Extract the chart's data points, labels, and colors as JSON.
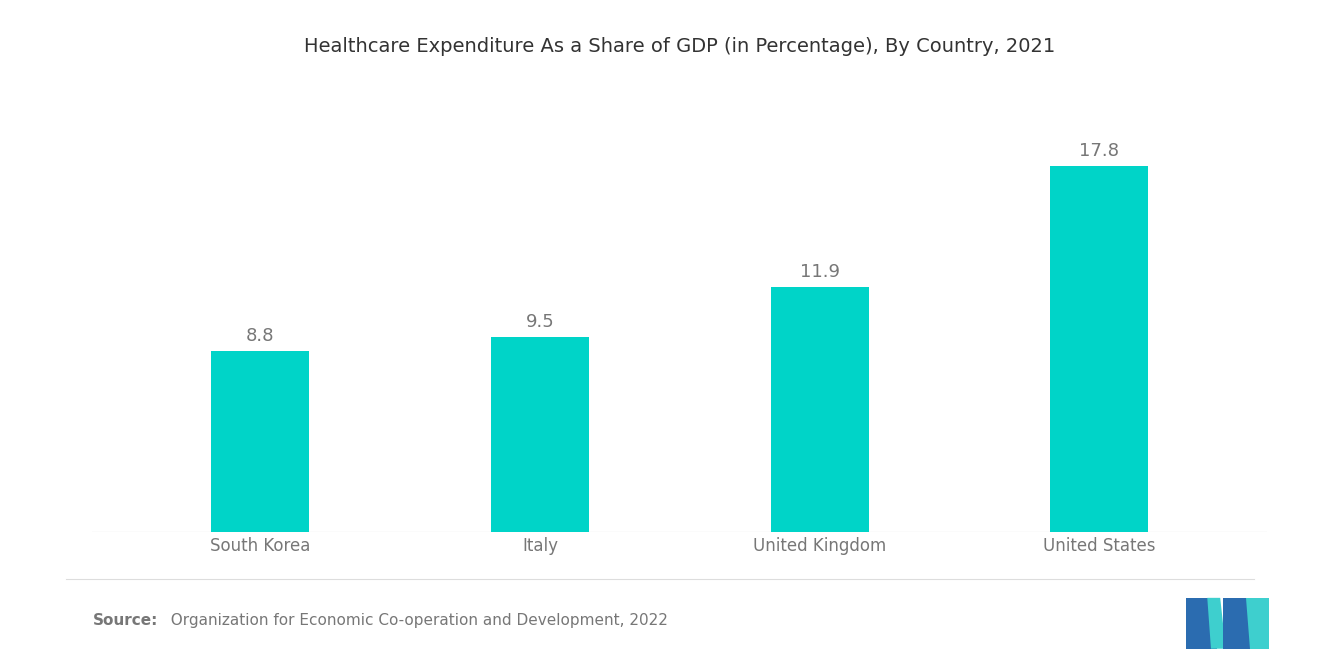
{
  "title": "Healthcare Expenditure As a Share of GDP (in Percentage), By Country, 2021",
  "categories": [
    "South Korea",
    "Italy",
    "United Kingdom",
    "United States"
  ],
  "values": [
    8.8,
    9.5,
    11.9,
    17.8
  ],
  "bar_color": "#00D4C8",
  "background_color": "#ffffff",
  "label_color": "#777777",
  "title_color": "#333333",
  "title_fontsize": 14,
  "label_fontsize": 12,
  "value_fontsize": 13,
  "source_bold_text": "Source:",
  "source_regular_text": "  Organization for Economic Co-operation and Development, 2022",
  "source_fontsize": 11,
  "ylim": [
    0,
    22
  ],
  "bar_width": 0.35,
  "logo_blue": "#2B6CB0",
  "logo_teal": "#3ECFCE"
}
